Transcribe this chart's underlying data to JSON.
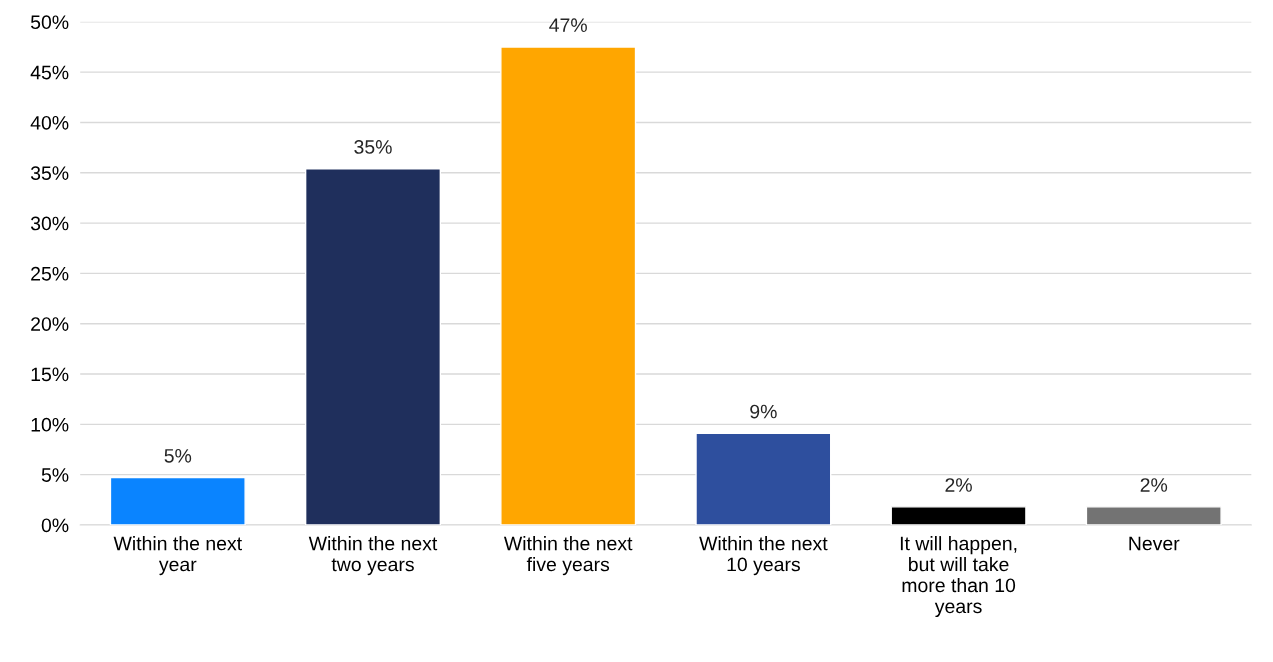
{
  "chart_data": {
    "type": "bar",
    "categories": [
      "Within the next\nyear",
      "Within the next\ntwo years",
      "Within the next\nfive years",
      "Within the next\n10 years",
      "It will happen,\nbut will take\nmore than 10\nyears",
      "Never"
    ],
    "values": [
      4.7,
      35.4,
      47.5,
      9.1,
      1.8,
      1.8
    ],
    "value_labels": [
      "5%",
      "35%",
      "47%",
      "9%",
      "2%",
      "2%"
    ],
    "colors": [
      "#0a84ff",
      "#1f2f5c",
      "#ffa600",
      "#2e4f9e",
      "#000000",
      "#737373"
    ],
    "ylim": [
      0,
      50
    ],
    "yticks": [
      {
        "value": 0,
        "label": "0%"
      },
      {
        "value": 5,
        "label": "5%"
      },
      {
        "value": 10,
        "label": "10%"
      },
      {
        "value": 15,
        "label": "15%"
      },
      {
        "value": 20,
        "label": "20%"
      },
      {
        "value": 25,
        "label": "25%"
      },
      {
        "value": 30,
        "label": "30%"
      },
      {
        "value": 35,
        "label": "35%"
      },
      {
        "value": 40,
        "label": "40%"
      },
      {
        "value": 45,
        "label": "45%"
      },
      {
        "value": 50,
        "label": "50%"
      }
    ],
    "grid": "y",
    "legend": false
  }
}
